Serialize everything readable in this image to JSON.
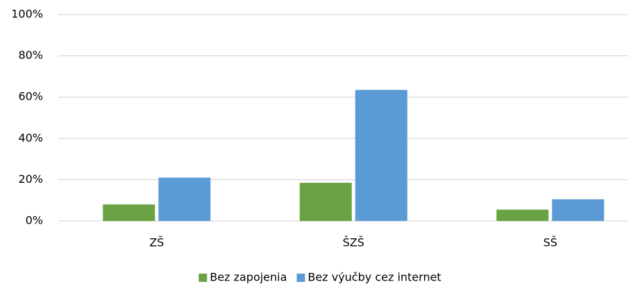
{
  "chart_data": {
    "type": "bar",
    "categories": [
      "ZŠ",
      "ŠZŠ",
      "SŠ"
    ],
    "series": [
      {
        "name": "Bez zapojenia",
        "color": "#6aa343",
        "values": [
          8,
          18.5,
          5.5
        ]
      },
      {
        "name": "Bez výučby cez internet",
        "color": "#5b9bd5",
        "values": [
          21,
          63.5,
          10.5
        ]
      }
    ],
    "ylim": [
      0,
      100
    ],
    "yticks": [
      {
        "value": 0,
        "label": "0%"
      },
      {
        "value": 20,
        "label": "20%"
      },
      {
        "value": 40,
        "label": "40%"
      },
      {
        "value": 60,
        "label": "60%"
      },
      {
        "value": 80,
        "label": "80%"
      },
      {
        "value": 100,
        "label": "100%"
      }
    ],
    "grid": true,
    "legend": "bottom"
  }
}
